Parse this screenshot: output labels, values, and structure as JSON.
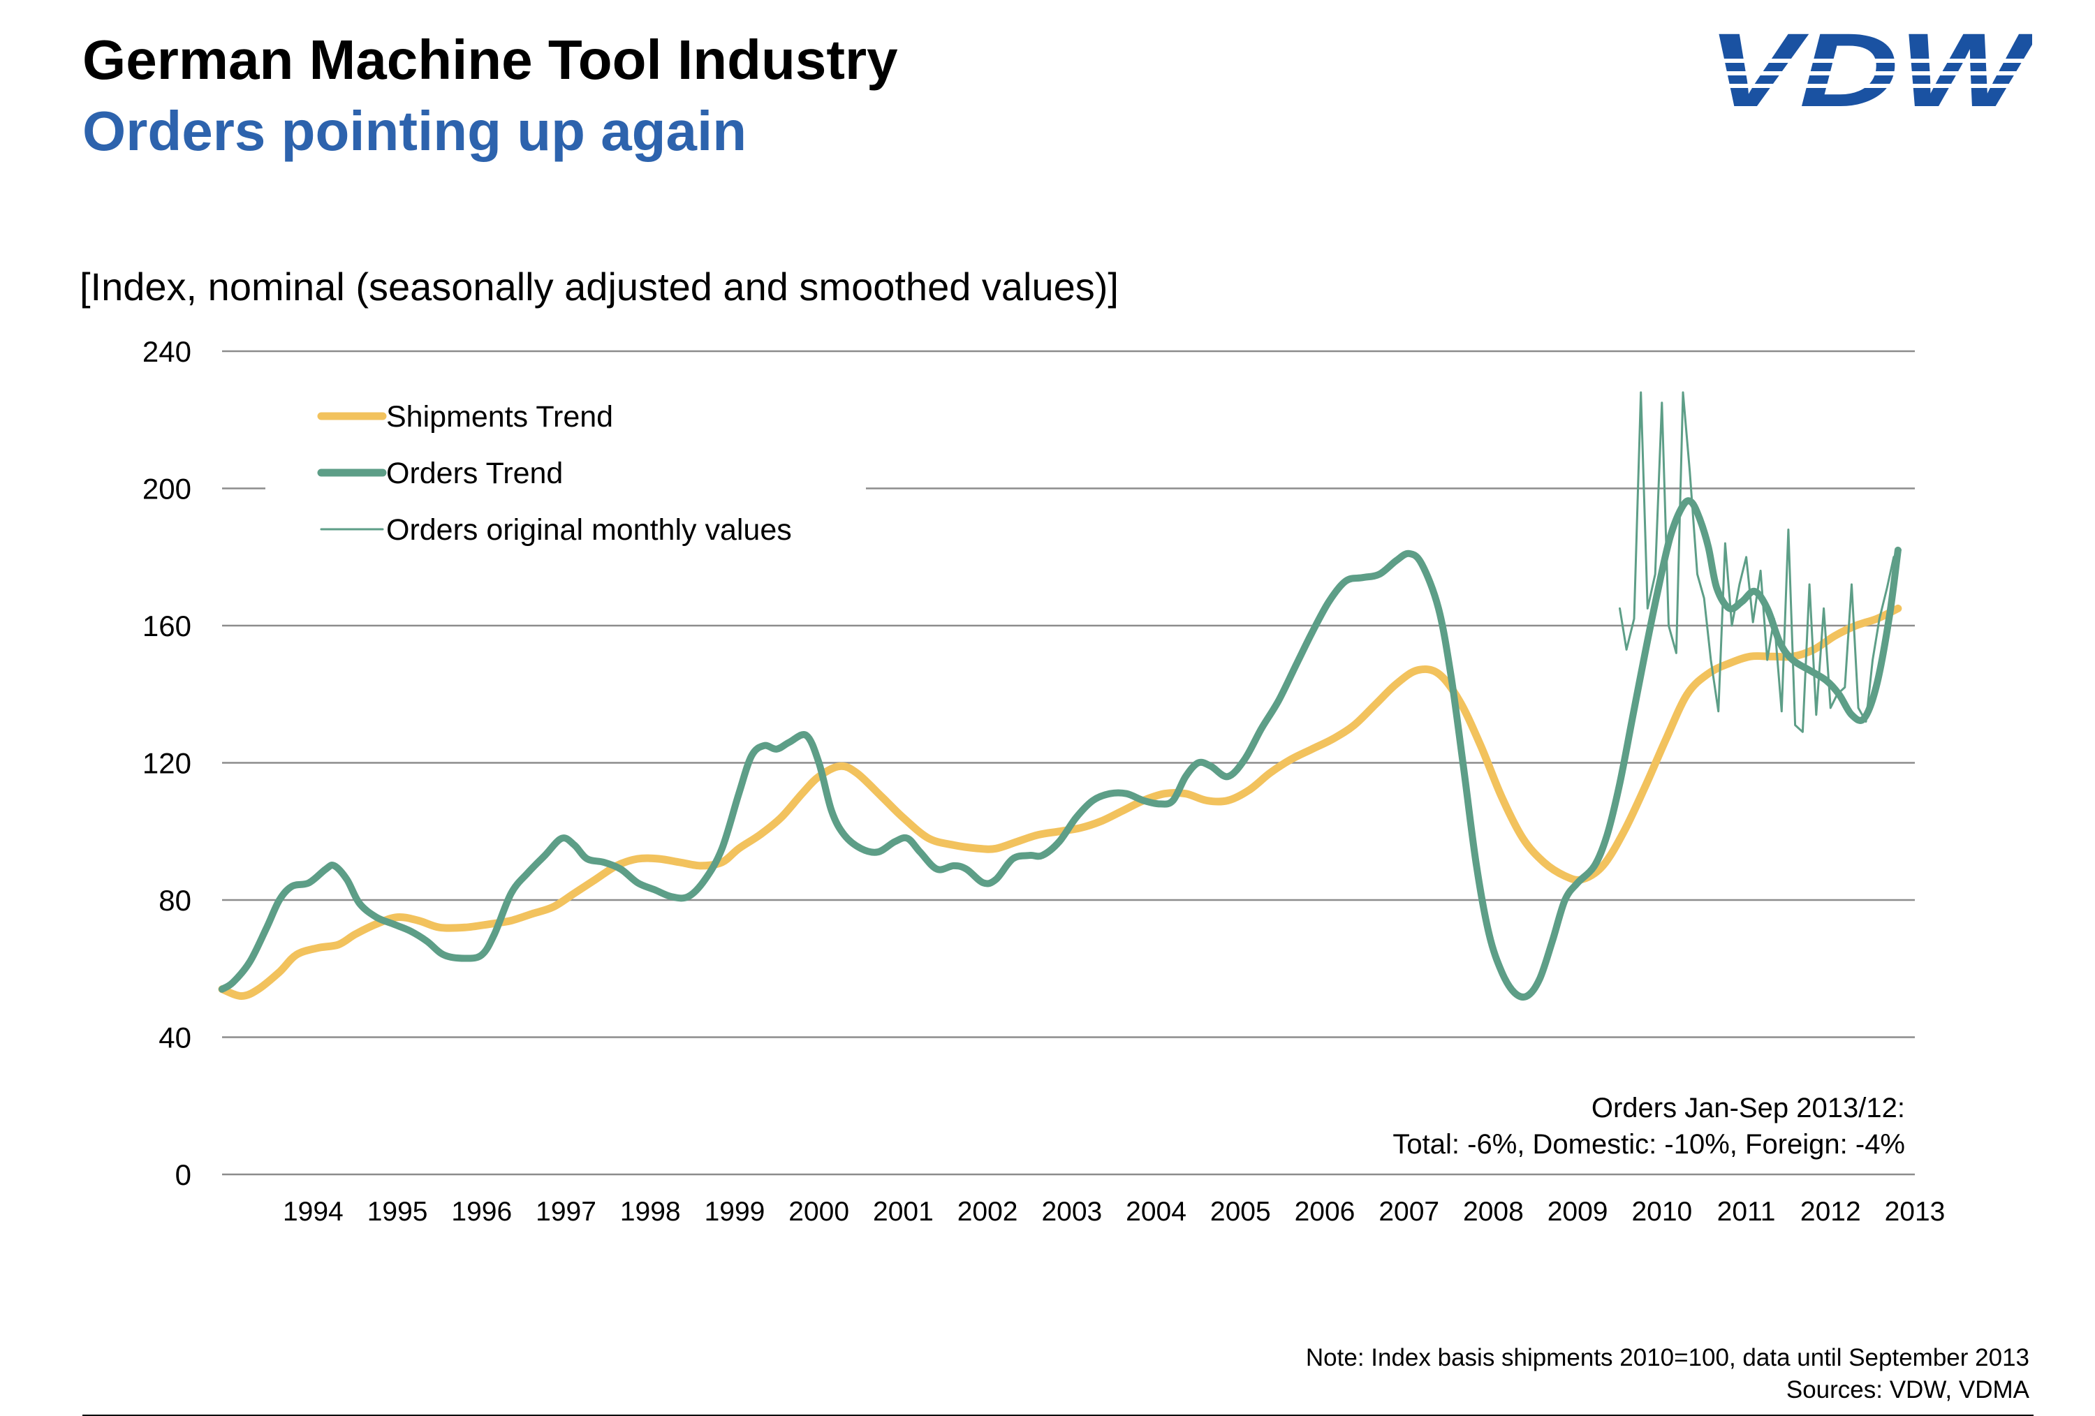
{
  "header": {
    "title": "German Machine Tool Industry",
    "subtitle": "Orders pointing up again",
    "logo_text": "VDW"
  },
  "colors": {
    "shipments": "#f2c25d",
    "orders": "#5d9e87",
    "subtitle": "#2d63ad",
    "logo": "#1a52a2",
    "grid": "#8c8c8c"
  },
  "annotation": {
    "line1": "Orders Jan-Sep 2013/12:",
    "line2": "Total: -6%, Domestic: -10%, Foreign: -4%"
  },
  "footer": {
    "note": "Note: Index basis shipments 2010=100, data until September 2013",
    "sources": "Sources: VDW, VDMA"
  },
  "chart_data": {
    "type": "line",
    "title": "German Machine Tool Industry",
    "ylabel": "[Index, nominal (seasonally adjusted and smoothed values)]",
    "xlabel": "",
    "ylim": [
      0,
      240
    ],
    "yticks": [
      0,
      40,
      80,
      120,
      160,
      200,
      240
    ],
    "xlim": [
      1993.42,
      2013.5
    ],
    "xticks": [
      "1994",
      "1995",
      "1996",
      "1997",
      "1998",
      "1999",
      "2000",
      "2001",
      "2002",
      "2003",
      "2004",
      "2005",
      "2006",
      "2007",
      "2008",
      "2009",
      "2010",
      "2011",
      "2012",
      "2013"
    ],
    "grid": true,
    "legend_position": "top-left",
    "series": [
      {
        "name": "Shipments Trend",
        "style": "thick",
        "points": [
          [
            1993.42,
            54
          ],
          [
            1993.65,
            52
          ],
          [
            1993.85,
            54
          ],
          [
            1994.1,
            59
          ],
          [
            1994.3,
            64
          ],
          [
            1994.55,
            66
          ],
          [
            1994.8,
            67
          ],
          [
            1995.0,
            70
          ],
          [
            1995.25,
            73
          ],
          [
            1995.5,
            75
          ],
          [
            1995.75,
            74
          ],
          [
            1996.0,
            72
          ],
          [
            1996.3,
            72
          ],
          [
            1996.6,
            73
          ],
          [
            1996.85,
            74
          ],
          [
            1997.1,
            76
          ],
          [
            1997.35,
            78
          ],
          [
            1997.6,
            82
          ],
          [
            1997.85,
            86
          ],
          [
            1998.1,
            90
          ],
          [
            1998.35,
            92
          ],
          [
            1998.6,
            92
          ],
          [
            1998.85,
            91
          ],
          [
            1999.1,
            90
          ],
          [
            1999.35,
            91
          ],
          [
            1999.55,
            95
          ],
          [
            1999.8,
            99
          ],
          [
            2000.05,
            104
          ],
          [
            2000.3,
            111
          ],
          [
            2000.5,
            116
          ],
          [
            2000.75,
            119
          ],
          [
            2000.95,
            117
          ],
          [
            2001.25,
            110
          ],
          [
            2001.5,
            104
          ],
          [
            2001.8,
            98
          ],
          [
            2002.1,
            96
          ],
          [
            2002.4,
            95
          ],
          [
            2002.6,
            95
          ],
          [
            2002.85,
            97
          ],
          [
            2003.1,
            99
          ],
          [
            2003.35,
            100
          ],
          [
            2003.6,
            101
          ],
          [
            2003.85,
            103
          ],
          [
            2004.1,
            106
          ],
          [
            2004.35,
            109
          ],
          [
            2004.6,
            111
          ],
          [
            2004.85,
            111
          ],
          [
            2005.1,
            109
          ],
          [
            2005.35,
            109
          ],
          [
            2005.6,
            112
          ],
          [
            2005.85,
            117
          ],
          [
            2006.1,
            121
          ],
          [
            2006.35,
            124
          ],
          [
            2006.6,
            127
          ],
          [
            2006.85,
            131
          ],
          [
            2007.1,
            137
          ],
          [
            2007.35,
            143
          ],
          [
            2007.6,
            147
          ],
          [
            2007.85,
            146
          ],
          [
            2008.1,
            138
          ],
          [
            2008.35,
            125
          ],
          [
            2008.6,
            110
          ],
          [
            2008.85,
            98
          ],
          [
            2009.1,
            91
          ],
          [
            2009.35,
            87
          ],
          [
            2009.55,
            86
          ],
          [
            2009.8,
            90
          ],
          [
            2010.05,
            100
          ],
          [
            2010.3,
            113
          ],
          [
            2010.55,
            127
          ],
          [
            2010.8,
            140
          ],
          [
            2011.05,
            146
          ],
          [
            2011.3,
            149
          ],
          [
            2011.55,
            151
          ],
          [
            2011.8,
            151
          ],
          [
            2012.05,
            151
          ],
          [
            2012.3,
            153
          ],
          [
            2012.55,
            157
          ],
          [
            2012.8,
            160
          ],
          [
            2013.05,
            162
          ],
          [
            2013.3,
            165
          ]
        ]
      },
      {
        "name": "Orders Trend",
        "style": "thick",
        "points": [
          [
            1993.42,
            54
          ],
          [
            1993.55,
            56
          ],
          [
            1993.75,
            62
          ],
          [
            1993.95,
            72
          ],
          [
            1994.1,
            80
          ],
          [
            1994.25,
            84
          ],
          [
            1994.45,
            85
          ],
          [
            1994.65,
            89
          ],
          [
            1994.75,
            90
          ],
          [
            1994.9,
            86
          ],
          [
            1995.05,
            79
          ],
          [
            1995.25,
            75
          ],
          [
            1995.45,
            73
          ],
          [
            1995.65,
            71
          ],
          [
            1995.85,
            68
          ],
          [
            1996.05,
            64
          ],
          [
            1996.3,
            63
          ],
          [
            1996.5,
            64
          ],
          [
            1996.65,
            70
          ],
          [
            1996.85,
            82
          ],
          [
            1997.05,
            88
          ],
          [
            1997.25,
            93
          ],
          [
            1997.45,
            98
          ],
          [
            1997.6,
            96
          ],
          [
            1997.75,
            92
          ],
          [
            1997.95,
            91
          ],
          [
            1998.15,
            89
          ],
          [
            1998.35,
            85
          ],
          [
            1998.55,
            83
          ],
          [
            1998.75,
            81
          ],
          [
            1998.95,
            81
          ],
          [
            1999.15,
            86
          ],
          [
            1999.35,
            95
          ],
          [
            1999.55,
            111
          ],
          [
            1999.7,
            122
          ],
          [
            1999.85,
            125
          ],
          [
            2000.0,
            124
          ],
          [
            2000.15,
            126
          ],
          [
            2000.35,
            128
          ],
          [
            2000.5,
            120
          ],
          [
            2000.65,
            106
          ],
          [
            2000.8,
            99
          ],
          [
            2001.0,
            95
          ],
          [
            2001.2,
            94
          ],
          [
            2001.4,
            97
          ],
          [
            2001.55,
            98
          ],
          [
            2001.7,
            94
          ],
          [
            2001.9,
            89
          ],
          [
            2002.1,
            90
          ],
          [
            2002.25,
            89
          ],
          [
            2002.45,
            85
          ],
          [
            2002.6,
            86
          ],
          [
            2002.8,
            92
          ],
          [
            2003.0,
            93
          ],
          [
            2003.15,
            93
          ],
          [
            2003.35,
            97
          ],
          [
            2003.55,
            104
          ],
          [
            2003.75,
            109
          ],
          [
            2003.95,
            111
          ],
          [
            2004.15,
            111
          ],
          [
            2004.35,
            109
          ],
          [
            2004.55,
            108
          ],
          [
            2004.7,
            109
          ],
          [
            2004.85,
            116
          ],
          [
            2005.0,
            120
          ],
          [
            2005.15,
            119
          ],
          [
            2005.35,
            116
          ],
          [
            2005.55,
            121
          ],
          [
            2005.75,
            130
          ],
          [
            2005.95,
            138
          ],
          [
            2006.15,
            148
          ],
          [
            2006.35,
            158
          ],
          [
            2006.55,
            167
          ],
          [
            2006.75,
            173
          ],
          [
            2006.95,
            174
          ],
          [
            2007.15,
            175
          ],
          [
            2007.35,
            179
          ],
          [
            2007.5,
            181
          ],
          [
            2007.65,
            178
          ],
          [
            2007.85,
            165
          ],
          [
            2008.0,
            145
          ],
          [
            2008.15,
            118
          ],
          [
            2008.3,
            90
          ],
          [
            2008.45,
            70
          ],
          [
            2008.6,
            59
          ],
          [
            2008.75,
            53
          ],
          [
            2008.9,
            52
          ],
          [
            2009.05,
            57
          ],
          [
            2009.2,
            68
          ],
          [
            2009.35,
            80
          ],
          [
            2009.5,
            85
          ],
          [
            2009.7,
            90
          ],
          [
            2009.85,
            99
          ],
          [
            2010.0,
            114
          ],
          [
            2010.15,
            133
          ],
          [
            2010.3,
            152
          ],
          [
            2010.45,
            170
          ],
          [
            2010.6,
            186
          ],
          [
            2010.75,
            195
          ],
          [
            2010.85,
            196
          ],
          [
            2010.95,
            191
          ],
          [
            2011.05,
            183
          ],
          [
            2011.15,
            171
          ],
          [
            2011.3,
            165
          ],
          [
            2011.45,
            167
          ],
          [
            2011.6,
            170
          ],
          [
            2011.75,
            165
          ],
          [
            2011.9,
            155
          ],
          [
            2012.05,
            150
          ],
          [
            2012.25,
            147
          ],
          [
            2012.45,
            144
          ],
          [
            2012.6,
            140
          ],
          [
            2012.75,
            134
          ],
          [
            2012.9,
            133
          ],
          [
            2013.05,
            143
          ],
          [
            2013.2,
            163
          ],
          [
            2013.3,
            182
          ]
        ]
      },
      {
        "name": "Orders original monthly values",
        "style": "thin",
        "points": [
          [
            2010.0,
            165
          ],
          [
            2010.08,
            153
          ],
          [
            2010.17,
            162
          ],
          [
            2010.25,
            228
          ],
          [
            2010.33,
            165
          ],
          [
            2010.42,
            175
          ],
          [
            2010.5,
            225
          ],
          [
            2010.58,
            160
          ],
          [
            2010.67,
            152
          ],
          [
            2010.75,
            228
          ],
          [
            2010.83,
            205
          ],
          [
            2010.92,
            175
          ],
          [
            2011.0,
            168
          ],
          [
            2011.08,
            150
          ],
          [
            2011.17,
            135
          ],
          [
            2011.25,
            184
          ],
          [
            2011.33,
            160
          ],
          [
            2011.42,
            172
          ],
          [
            2011.5,
            180
          ],
          [
            2011.58,
            161
          ],
          [
            2011.67,
            176
          ],
          [
            2011.75,
            150
          ],
          [
            2011.83,
            162
          ],
          [
            2011.92,
            135
          ],
          [
            2012.0,
            188
          ],
          [
            2012.08,
            131
          ],
          [
            2012.17,
            129
          ],
          [
            2012.25,
            172
          ],
          [
            2012.33,
            134
          ],
          [
            2012.42,
            165
          ],
          [
            2012.5,
            136
          ],
          [
            2012.58,
            140
          ],
          [
            2012.67,
            142
          ],
          [
            2012.75,
            172
          ],
          [
            2012.83,
            136
          ],
          [
            2012.92,
            132
          ],
          [
            2013.0,
            150
          ],
          [
            2013.08,
            162
          ],
          [
            2013.17,
            171
          ],
          [
            2013.25,
            180
          ],
          [
            2013.33,
            182
          ]
        ]
      }
    ]
  }
}
